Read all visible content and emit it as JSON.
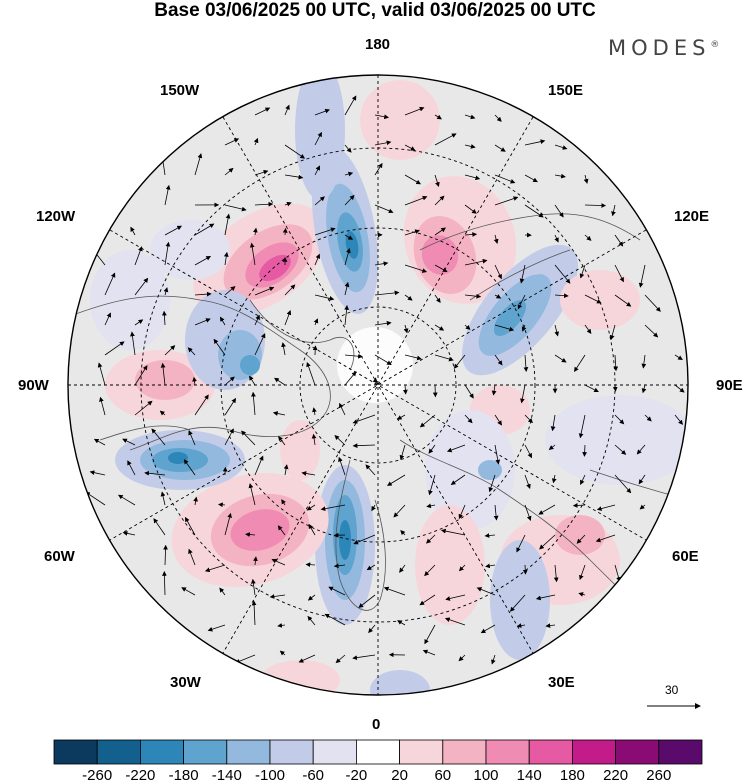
{
  "title": "Base 03/06/2025 00 UTC, valid 03/06/2025 00 UTC",
  "brand": "MODES",
  "brand_mark": "®",
  "longitude_labels": {
    "lon_180": "180",
    "lon_150w": "150W",
    "lon_150e": "150E",
    "lon_120w": "120W",
    "lon_120e": "120E",
    "lon_90w": "90W",
    "lon_90e": "90E",
    "lon_60w": "60W",
    "lon_60e": "60E",
    "lon_30w": "30W",
    "lon_30e": "30E",
    "lon_0": "0"
  },
  "reference_vector": {
    "value": "30"
  },
  "colorbar": {
    "labels": [
      "-260",
      "-220",
      "-180",
      "-140",
      "-100",
      "-60",
      "-20",
      "20",
      "60",
      "100",
      "140",
      "180",
      "220",
      "260"
    ],
    "colors": [
      "#0b3a5e",
      "#13608f",
      "#2d86b8",
      "#5fa3cf",
      "#93b9de",
      "#c2cce8",
      "#e2e2f0",
      "#ffffff",
      "#f7d6db",
      "#f4b3c2",
      "#f08cb3",
      "#e55aa3",
      "#c21c8a",
      "#8a0b74",
      "#5a0a6b"
    ]
  },
  "map": {
    "projection": "north polar stereographic",
    "background_color": "#e6e6e6",
    "ocean_land": "gray",
    "anomaly_blobs": [
      {
        "sign": "positive",
        "level": 180,
        "color": "#e55aa3"
      },
      {
        "sign": "negative",
        "level": -180,
        "color": "#2d86b8"
      },
      {
        "sign": "positive",
        "level": 140,
        "color": "#f08cb3"
      },
      {
        "sign": "negative",
        "level": -140,
        "color": "#5fa3cf"
      },
      {
        "sign": "positive",
        "level": 100,
        "color": "#f4b3c2"
      },
      {
        "sign": "negative",
        "level": -100,
        "color": "#93b9de"
      },
      {
        "sign": "positive",
        "level": 60,
        "color": "#f7d6db"
      },
      {
        "sign": "negative",
        "level": -60,
        "color": "#c2cce8"
      }
    ]
  }
}
